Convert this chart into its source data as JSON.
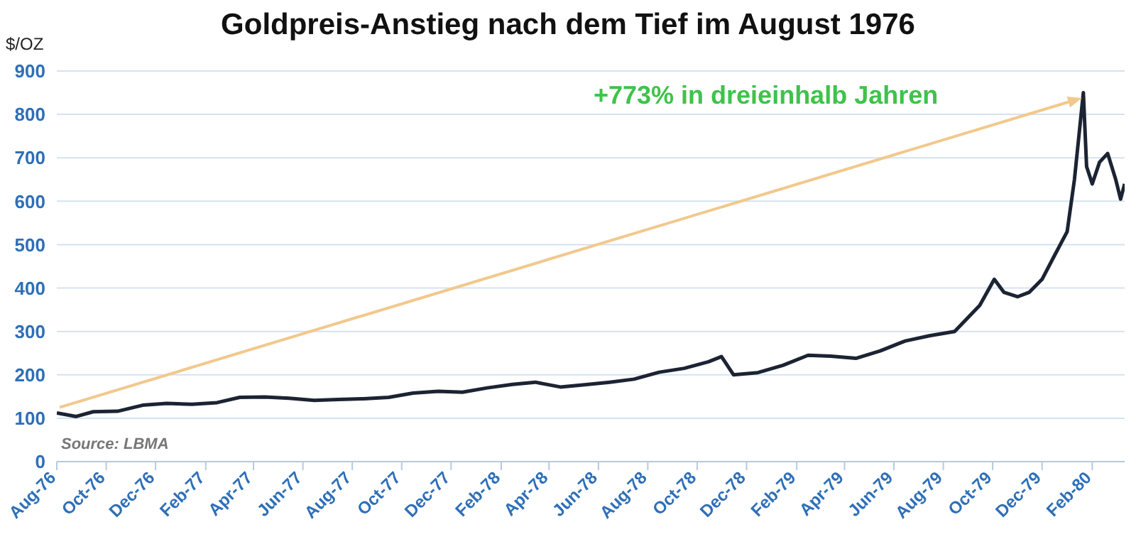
{
  "chart_data": {
    "type": "line",
    "title": "Goldpreis-Anstieg nach dem Tief im August 1976",
    "ylabel": "$/OZ",
    "annotations": [
      "+773% in dreieinhalb Jahren",
      "Source: LBMA"
    ],
    "x": [
      "1976-08-01",
      "1976-08-25",
      "1976-09-15",
      "1976-10-15",
      "1976-11-15",
      "1976-12-15",
      "1977-01-15",
      "1977-02-15",
      "1977-03-15",
      "1977-04-15",
      "1977-05-15",
      "1977-06-15",
      "1977-07-15",
      "1977-08-15",
      "1977-09-15",
      "1977-10-15",
      "1977-11-15",
      "1977-12-15",
      "1978-01-15",
      "1978-02-15",
      "1978-03-15",
      "1978-04-15",
      "1978-05-15",
      "1978-06-15",
      "1978-07-15",
      "1978-08-15",
      "1978-09-15",
      "1978-10-15",
      "1978-10-31",
      "1978-11-15",
      "1978-12-15",
      "1979-01-15",
      "1979-02-15",
      "1979-03-15",
      "1979-04-15",
      "1979-05-15",
      "1979-06-15",
      "1979-07-15",
      "1979-08-15",
      "1979-09-15",
      "1979-10-03",
      "1979-10-15",
      "1979-11-01",
      "1979-11-15",
      "1979-12-01",
      "1979-12-15",
      "1980-01-01",
      "1980-01-10",
      "1980-01-21",
      "1980-01-25",
      "1980-02-01",
      "1980-02-10",
      "1980-02-20",
      "1980-03-01",
      "1980-03-07",
      "1980-03-12"
    ],
    "series": [
      {
        "color": "#1c2333",
        "values": [
          112,
          104,
          115,
          116,
          130,
          134,
          132,
          136,
          148,
          149,
          146,
          141,
          143,
          145,
          148,
          158,
          162,
          160,
          170,
          178,
          183,
          172,
          177,
          183,
          190,
          206,
          215,
          230,
          242,
          200,
          205,
          222,
          245,
          243,
          238,
          255,
          278,
          290,
          300,
          360,
          420,
          390,
          380,
          390,
          420,
          470,
          530,
          650,
          850,
          680,
          640,
          690,
          710,
          650,
          605,
          640
        ]
      }
    ],
    "xlim": [
      "1976-08-01",
      "1980-03-12"
    ],
    "xticks": [
      {
        "value": "1976-08-01",
        "label": "Aug-76"
      },
      {
        "value": "1976-10-01",
        "label": "Oct-76"
      },
      {
        "value": "1976-12-01",
        "label": "Dec-76"
      },
      {
        "value": "1977-02-01",
        "label": "Feb-77"
      },
      {
        "value": "1977-04-01",
        "label": "Apr-77"
      },
      {
        "value": "1977-06-01",
        "label": "Jun-77"
      },
      {
        "value": "1977-08-01",
        "label": "Aug-77"
      },
      {
        "value": "1977-10-01",
        "label": "Oct-77"
      },
      {
        "value": "1977-12-01",
        "label": "Dec-77"
      },
      {
        "value": "1978-02-01",
        "label": "Feb-78"
      },
      {
        "value": "1978-04-01",
        "label": "Apr-78"
      },
      {
        "value": "1978-06-01",
        "label": "Jun-78"
      },
      {
        "value": "1978-08-01",
        "label": "Aug-78"
      },
      {
        "value": "1978-10-01",
        "label": "Oct-78"
      },
      {
        "value": "1978-12-01",
        "label": "Dec-78"
      },
      {
        "value": "1979-02-01",
        "label": "Feb-79"
      },
      {
        "value": "1979-04-01",
        "label": "Apr-79"
      },
      {
        "value": "1979-06-01",
        "label": "Jun-79"
      },
      {
        "value": "1979-08-01",
        "label": "Aug-79"
      },
      {
        "value": "1979-10-01",
        "label": "Oct-79"
      },
      {
        "value": "1979-12-01",
        "label": "Dec-79"
      },
      {
        "value": "1980-02-01",
        "label": "Feb-80"
      }
    ],
    "ylim": [
      0,
      900
    ],
    "yticks": [
      0,
      100,
      200,
      300,
      400,
      500,
      600,
      700,
      800,
      900
    ],
    "grid": "y",
    "legend": false,
    "marker": "none",
    "line_style": "solid"
  }
}
